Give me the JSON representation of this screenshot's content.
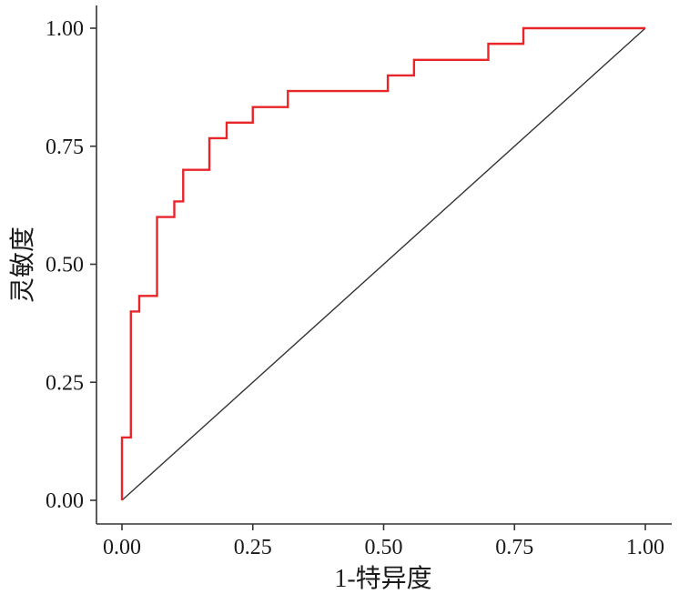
{
  "chart_data": {
    "type": "line",
    "title": "",
    "xlabel": "1-特异度",
    "ylabel": "灵敏度",
    "xlim": [
      0,
      1
    ],
    "ylim": [
      0,
      1
    ],
    "grid": false,
    "x_ticks": [
      "0.00",
      "0.25",
      "0.50",
      "0.75",
      "1.00"
    ],
    "y_ticks": [
      "0.00",
      "0.25",
      "0.50",
      "0.75",
      "1.00"
    ],
    "x_tick_values": [
      0,
      0.25,
      0.5,
      0.75,
      1
    ],
    "y_tick_values": [
      0,
      0.25,
      0.5,
      0.75,
      1
    ],
    "series": [
      {
        "color": "#e8262a",
        "style": "step",
        "x": [
          0.0,
          0.0,
          0.017,
          0.017,
          0.033,
          0.033,
          0.067,
          0.067,
          0.1,
          0.1,
          0.117,
          0.117,
          0.167,
          0.167,
          0.2,
          0.2,
          0.25,
          0.25,
          0.317,
          0.317,
          0.467,
          0.508,
          0.508,
          0.558,
          0.558,
          0.7,
          0.7,
          0.767,
          0.767,
          1.0
        ],
        "y": [
          0.0,
          0.133,
          0.133,
          0.4,
          0.4,
          0.433,
          0.433,
          0.6,
          0.6,
          0.633,
          0.633,
          0.7,
          0.7,
          0.767,
          0.767,
          0.8,
          0.8,
          0.833,
          0.833,
          0.867,
          0.867,
          0.867,
          0.9,
          0.9,
          0.933,
          0.933,
          0.967,
          0.967,
          1.0,
          1.0
        ]
      },
      {
        "color": "#333333",
        "style": "line",
        "x": [
          0,
          1
        ],
        "y": [
          0,
          1
        ]
      }
    ]
  }
}
